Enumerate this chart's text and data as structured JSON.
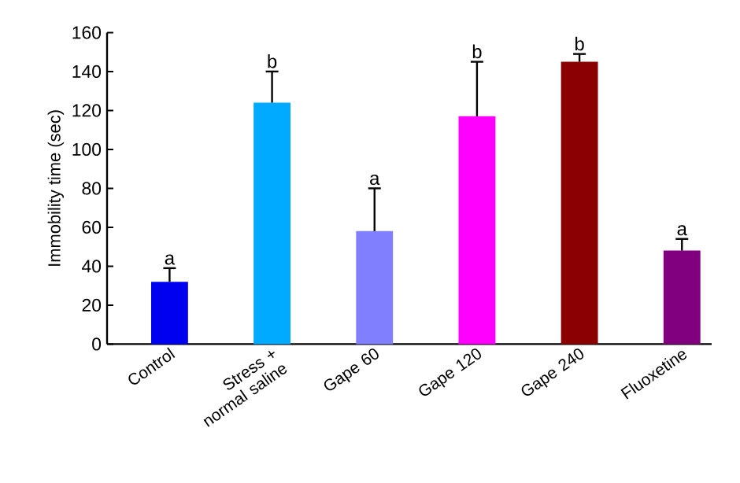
{
  "chart_data": {
    "type": "bar",
    "ylabel": "Immobility time (sec)",
    "categories": [
      "Control",
      "Stress + normal saline",
      "Gape 60",
      "Gape 120",
      "Gape 240",
      "Fluoxetine"
    ],
    "values": [
      32,
      124,
      58,
      117,
      145,
      48
    ],
    "colors": [
      "#0000f0",
      "#00aaff",
      "#8080ff",
      "#ff00ff",
      "#8b0000",
      "#800080"
    ],
    "errors": [
      [
        32,
        39
      ],
      [
        124,
        140
      ],
      [
        58,
        80
      ],
      [
        117,
        145
      ],
      [
        145,
        149
      ],
      [
        48,
        54
      ]
    ],
    "ylim": [
      0,
      160
    ],
    "yticks": [
      0,
      20,
      40,
      60,
      80,
      100,
      120,
      140,
      160
    ],
    "grid": false,
    "annotations": [
      {
        "text": "a",
        "x": "Control",
        "y": 39
      },
      {
        "text": "b",
        "x": "Stress + normal saline",
        "y": 140
      },
      {
        "text": "a",
        "x": "Gape 60",
        "y": 80
      },
      {
        "text": "b",
        "x": "Gape 120",
        "y": 145
      },
      {
        "text": "b",
        "x": "Gape 240",
        "y": 149
      },
      {
        "text": "a",
        "x": "Fluoxetine",
        "y": 54
      }
    ]
  }
}
